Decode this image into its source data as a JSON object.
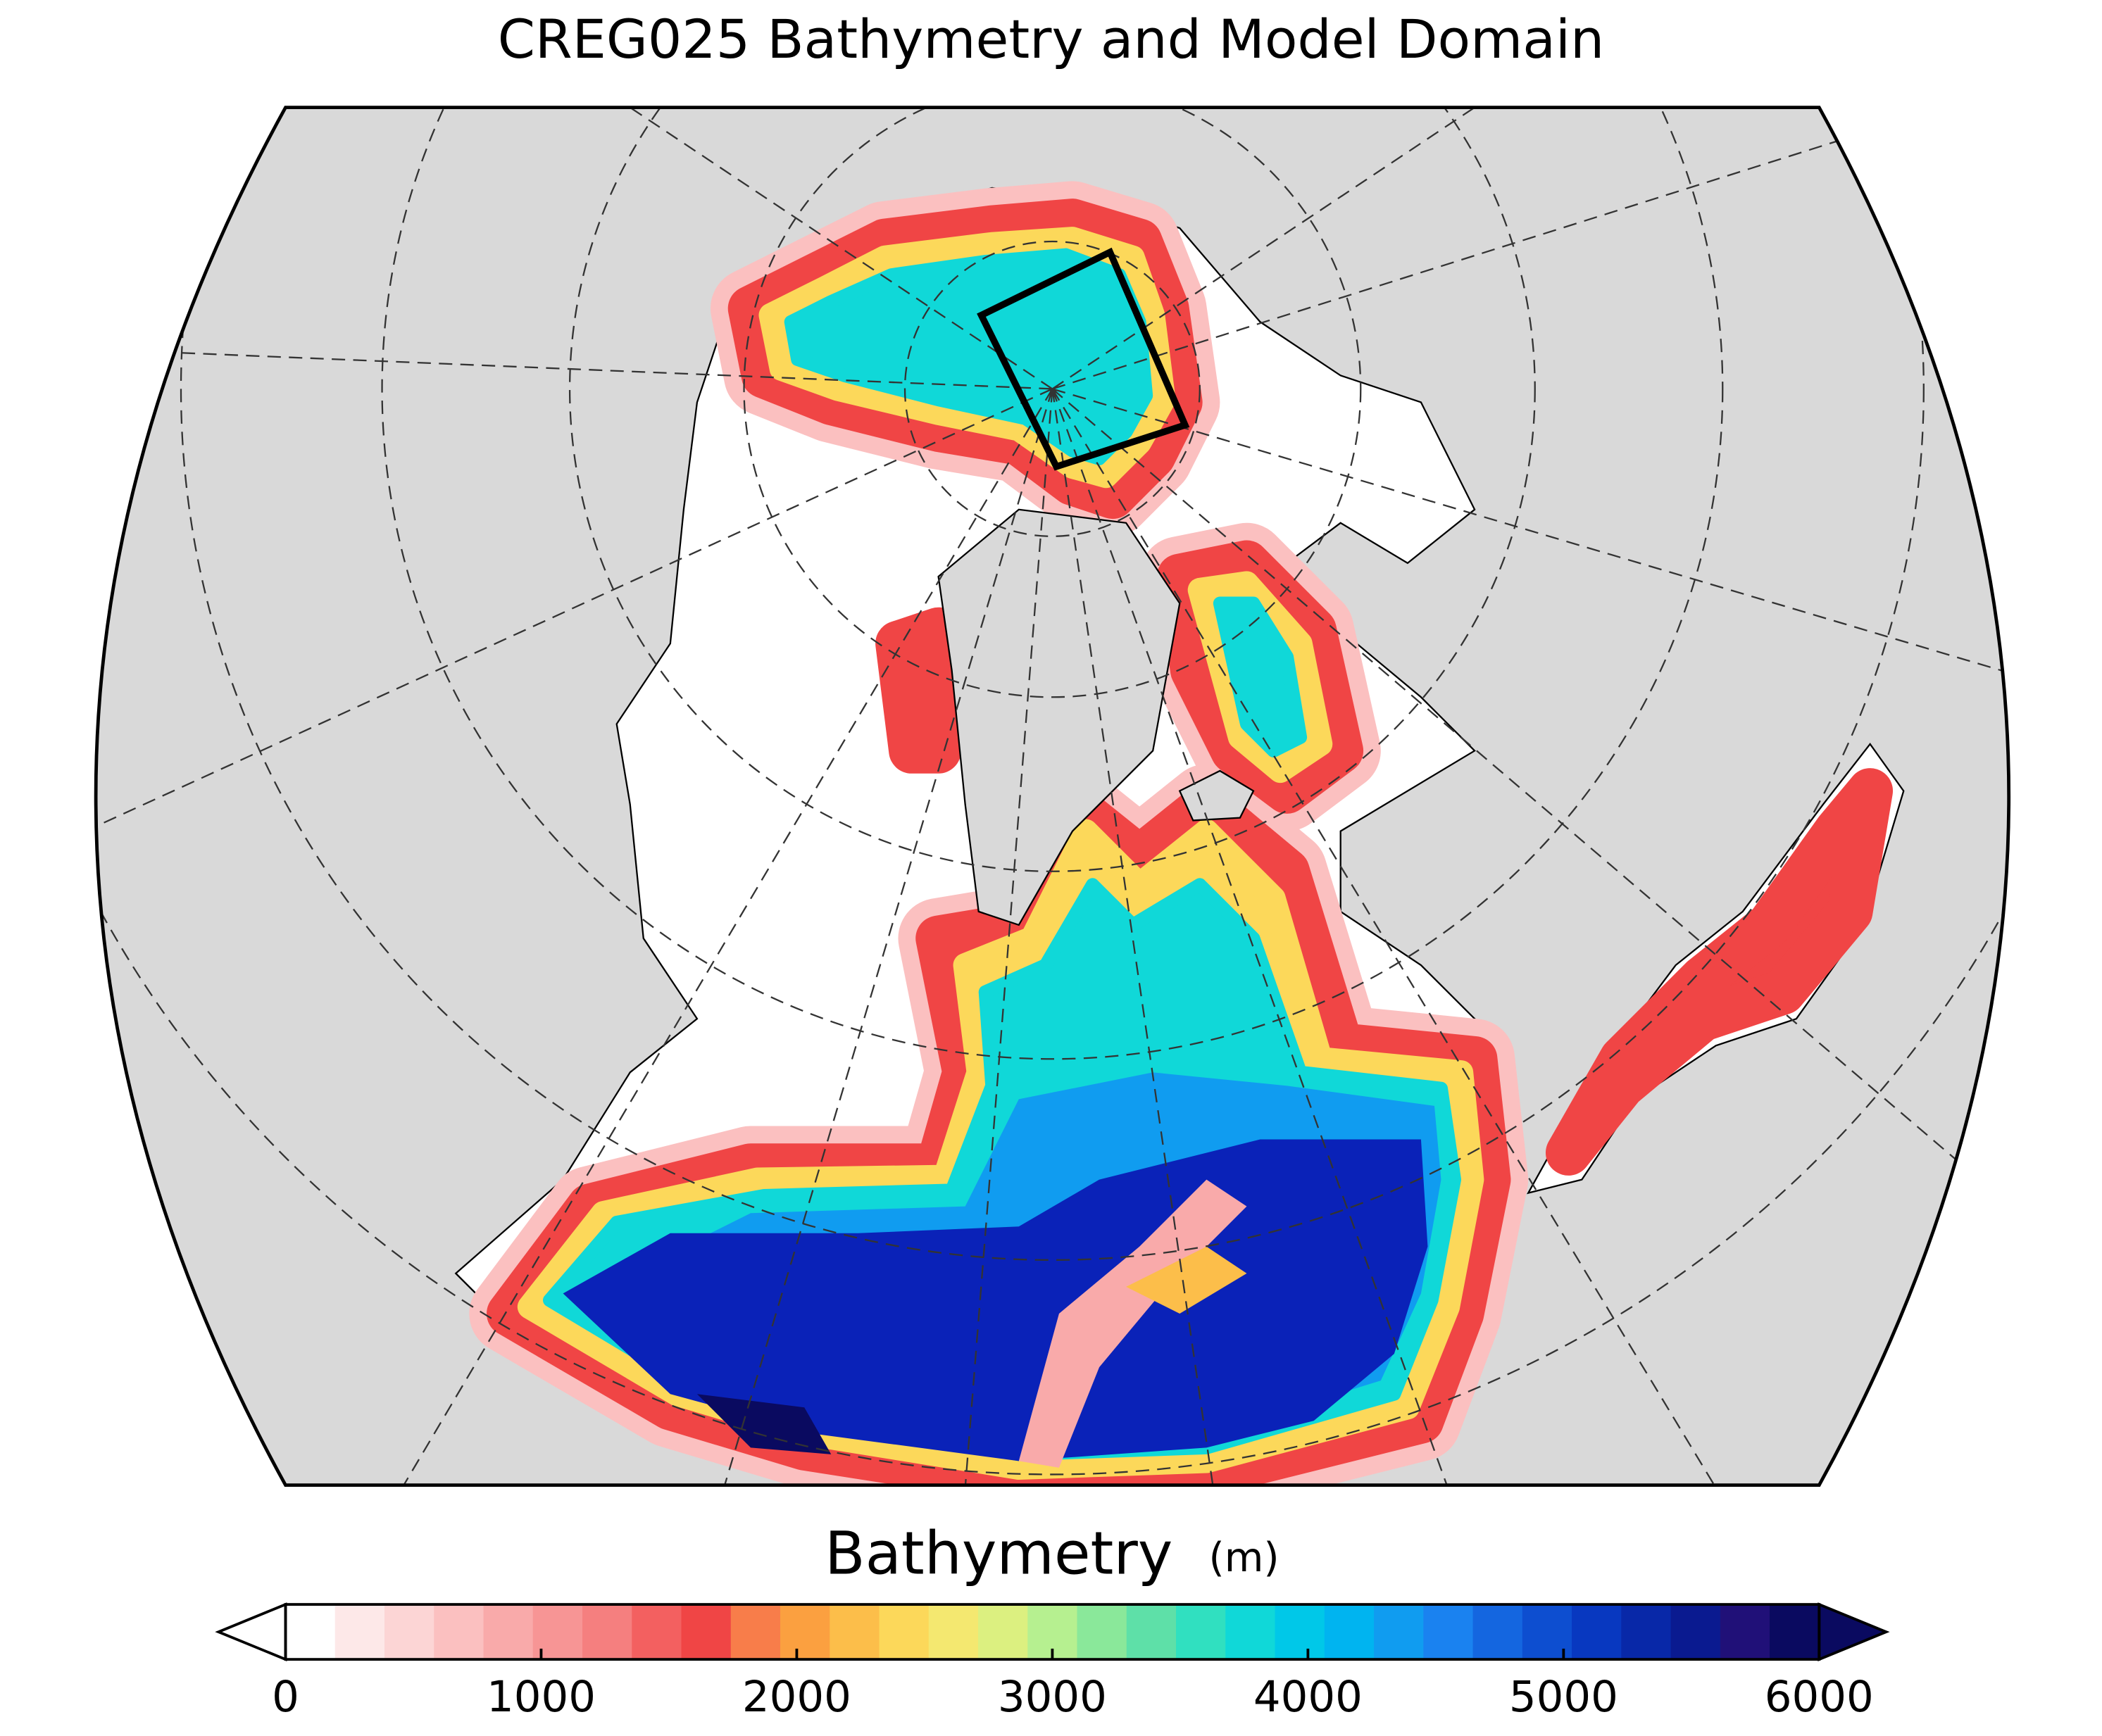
{
  "title": "CREG025 Bathymetry and Model Domain",
  "colorbar": {
    "label": "Bathymetry",
    "unit": "(m)",
    "lim": [
      0,
      6000
    ],
    "ticks": [
      0,
      1000,
      2000,
      3000,
      4000,
      5000,
      6000
    ],
    "colors": [
      "#ffffff",
      "#fde8e8",
      "#fcd5d5",
      "#fbc0c0",
      "#f9aaaa",
      "#f79595",
      "#f57f7f",
      "#f36060",
      "#f04545",
      "#f87d4a",
      "#fba040",
      "#fcbe4a",
      "#fcd85a",
      "#f4e870",
      "#dcf080",
      "#b6f090",
      "#8ae89a",
      "#5ee0a8",
      "#30e0c0",
      "#10d8d8",
      "#00c8e8",
      "#00b4f0",
      "#109cf0",
      "#1a82f0",
      "#1466e0",
      "#0d4ed0",
      "#0838c0",
      "#0828a8",
      "#0a1a90",
      "#201078",
      "#0a0a60"
    ],
    "under_color": "#ffffff",
    "over_color": "#0a0a60"
  }
}
